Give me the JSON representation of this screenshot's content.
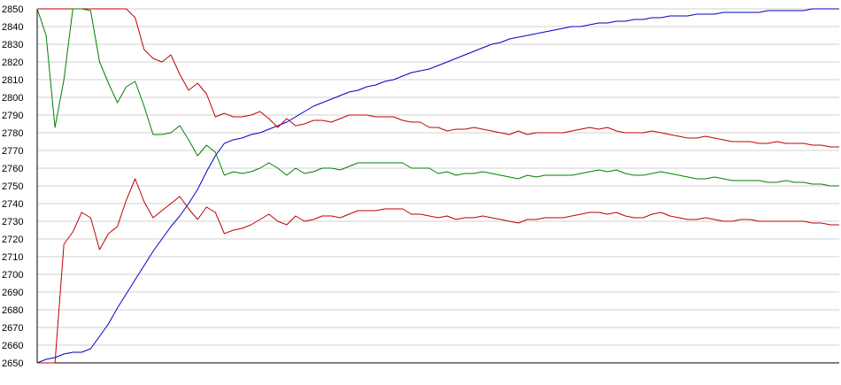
{
  "chart_data": {
    "type": "line",
    "title": "",
    "xlabel": "",
    "ylabel": "",
    "ylim": [
      2650,
      2850
    ],
    "yticks": [
      2650,
      2660,
      2670,
      2680,
      2690,
      2700,
      2710,
      2720,
      2730,
      2740,
      2750,
      2760,
      2770,
      2780,
      2790,
      2800,
      2810,
      2820,
      2830,
      2840,
      2850
    ],
    "ytick_labels": [
      "2650",
      "2660",
      "2670",
      "2680",
      "2690",
      "2700",
      "2710",
      "2720",
      "2730",
      "2740",
      "2750",
      "2760",
      "2770",
      "2780",
      "2790",
      "2800",
      "2810",
      "2820",
      "2830",
      "2840",
      "2850"
    ],
    "grid": "horizontal",
    "legend": "none",
    "colors": {
      "blue": "#0000c0",
      "red": "#c00000",
      "green": "#008000",
      "grid": "#d0d0d0",
      "axis": "#000000"
    },
    "series": [
      {
        "color": "#0000c0",
        "x": [
          0,
          10,
          20,
          30,
          40,
          50,
          60,
          70,
          80,
          90,
          100,
          110,
          120,
          130,
          140,
          150,
          160,
          170,
          180,
          190,
          200,
          210,
          220,
          230,
          240,
          250,
          260,
          270,
          280,
          290,
          300,
          310,
          320,
          330,
          340,
          350,
          360,
          370,
          380,
          390,
          400,
          410,
          420,
          430,
          440,
          450,
          460,
          470,
          480,
          490,
          500,
          510,
          520,
          530,
          540,
          550,
          560,
          570,
          580,
          590,
          600,
          610,
          620,
          630,
          640,
          650,
          660,
          670,
          680,
          690,
          700,
          710,
          720,
          730,
          740,
          750,
          760,
          770,
          780,
          790,
          800,
          810,
          820,
          830,
          840,
          850,
          860,
          870,
          880,
          890,
          900
        ],
        "y": [
          2650,
          2652,
          2653,
          2655,
          2656,
          2656,
          2658,
          2665,
          2672,
          2681,
          2689,
          2697,
          2705,
          2713,
          2720,
          2727,
          2733,
          2740,
          2748,
          2758,
          2767,
          2774,
          2776,
          2777,
          2779,
          2780,
          2782,
          2784,
          2786,
          2789,
          2792,
          2795,
          2797,
          2799,
          2801,
          2803,
          2804,
          2806,
          2807,
          2809,
          2810,
          2812,
          2814,
          2815,
          2816,
          2818,
          2820,
          2822,
          2824,
          2826,
          2828,
          2830,
          2831,
          2833,
          2834,
          2835,
          2836,
          2837,
          2838,
          2839,
          2840,
          2840,
          2841,
          2842,
          2842,
          2843,
          2843,
          2844,
          2844,
          2845,
          2845,
          2846,
          2846,
          2846,
          2847,
          2847,
          2847,
          2848,
          2848,
          2848,
          2848,
          2848,
          2849,
          2849,
          2849,
          2849,
          2849,
          2850,
          2850,
          2850,
          2850
        ]
      },
      {
        "color": "#c00000",
        "x": [
          0,
          10,
          20,
          30,
          40,
          50,
          60,
          70,
          80,
          90,
          100,
          110,
          120,
          130,
          140,
          150,
          160,
          170,
          180,
          190,
          200,
          210,
          220,
          230,
          240,
          250,
          260,
          270,
          280,
          290,
          300,
          310,
          320,
          330,
          340,
          350,
          360,
          370,
          380,
          390,
          400,
          410,
          420,
          430,
          440,
          450,
          460,
          470,
          480,
          490,
          500,
          510,
          520,
          530,
          540,
          550,
          560,
          570,
          580,
          590,
          600,
          610,
          620,
          630,
          640,
          650,
          660,
          670,
          680,
          690,
          700,
          710,
          720,
          730,
          740,
          750,
          760,
          770,
          780,
          790,
          800,
          810,
          820,
          830,
          840,
          850,
          860,
          870,
          880,
          890,
          900
        ],
        "y": [
          2850,
          2850,
          2850,
          2850,
          2850,
          2850,
          2850,
          2850,
          2850,
          2850,
          2850,
          2845,
          2827,
          2822,
          2820,
          2824,
          2813,
          2804,
          2808,
          2802,
          2789,
          2791,
          2789,
          2789,
          2790,
          2792,
          2788,
          2783,
          2788,
          2784,
          2785,
          2787,
          2787,
          2786,
          2788,
          2790,
          2790,
          2790,
          2789,
          2789,
          2789,
          2787,
          2786,
          2786,
          2783,
          2783,
          2781,
          2782,
          2782,
          2783,
          2782,
          2781,
          2780,
          2779,
          2781,
          2779,
          2780,
          2780,
          2780,
          2780,
          2781,
          2782,
          2783,
          2782,
          2783,
          2781,
          2780,
          2780,
          2780,
          2781,
          2780,
          2779,
          2778,
          2777,
          2777,
          2778,
          2777,
          2776,
          2775,
          2775,
          2775,
          2774,
          2774,
          2775,
          2774,
          2774,
          2774,
          2773,
          2773,
          2772,
          2772
        ]
      },
      {
        "color": "#008000",
        "x": [
          0,
          10,
          20,
          30,
          40,
          50,
          60,
          70,
          80,
          90,
          100,
          110,
          120,
          130,
          140,
          150,
          160,
          170,
          180,
          190,
          200,
          210,
          220,
          230,
          240,
          250,
          260,
          270,
          280,
          290,
          300,
          310,
          320,
          330,
          340,
          350,
          360,
          370,
          380,
          390,
          400,
          410,
          420,
          430,
          440,
          450,
          460,
          470,
          480,
          490,
          500,
          510,
          520,
          530,
          540,
          550,
          560,
          570,
          580,
          590,
          600,
          610,
          620,
          630,
          640,
          650,
          660,
          670,
          680,
          690,
          700,
          710,
          720,
          730,
          740,
          750,
          760,
          770,
          780,
          790,
          800,
          810,
          820,
          830,
          840,
          850,
          860,
          870,
          880,
          890,
          900
        ],
        "y": [
          2850,
          2835,
          2783,
          2810,
          2850,
          2850,
          2849,
          2820,
          2808,
          2797,
          2806,
          2809,
          2795,
          2779,
          2779,
          2780,
          2784,
          2776,
          2767,
          2773,
          2769,
          2756,
          2758,
          2757,
          2758,
          2760,
          2763,
          2760,
          2756,
          2760,
          2757,
          2758,
          2760,
          2760,
          2759,
          2761,
          2763,
          2763,
          2763,
          2763,
          2763,
          2763,
          2760,
          2760,
          2760,
          2757,
          2758,
          2756,
          2757,
          2757,
          2758,
          2757,
          2756,
          2755,
          2754,
          2756,
          2755,
          2756,
          2756,
          2756,
          2756,
          2757,
          2758,
          2759,
          2758,
          2759,
          2757,
          2756,
          2756,
          2757,
          2758,
          2757,
          2756,
          2755,
          2754,
          2754,
          2755,
          2754,
          2753,
          2753,
          2753,
          2753,
          2752,
          2752,
          2753,
          2752,
          2752,
          2751,
          2751,
          2750,
          2750
        ]
      },
      {
        "color": "#c00000",
        "x": [
          0,
          10,
          20,
          30,
          40,
          50,
          60,
          70,
          80,
          90,
          100,
          110,
          120,
          130,
          140,
          150,
          160,
          170,
          180,
          190,
          200,
          210,
          220,
          230,
          240,
          250,
          260,
          270,
          280,
          290,
          300,
          310,
          320,
          330,
          340,
          350,
          360,
          370,
          380,
          390,
          400,
          410,
          420,
          430,
          440,
          450,
          460,
          470,
          480,
          490,
          500,
          510,
          520,
          530,
          540,
          550,
          560,
          570,
          580,
          590,
          600,
          610,
          620,
          630,
          640,
          650,
          660,
          670,
          680,
          690,
          700,
          710,
          720,
          730,
          740,
          750,
          760,
          770,
          780,
          790,
          800,
          810,
          820,
          830,
          840,
          850,
          860,
          870,
          880,
          890,
          900
        ],
        "y": [
          2650,
          2650,
          2650,
          2717,
          2724,
          2735,
          2732,
          2714,
          2723,
          2727,
          2742,
          2754,
          2741,
          2732,
          2736,
          2740,
          2744,
          2737,
          2731,
          2738,
          2735,
          2723,
          2725,
          2726,
          2728,
          2731,
          2734,
          2730,
          2728,
          2733,
          2730,
          2731,
          2733,
          2733,
          2732,
          2734,
          2736,
          2736,
          2736,
          2737,
          2737,
          2737,
          2734,
          2734,
          2733,
          2732,
          2733,
          2731,
          2732,
          2732,
          2733,
          2732,
          2731,
          2730,
          2729,
          2731,
          2731,
          2732,
          2732,
          2732,
          2733,
          2734,
          2735,
          2735,
          2734,
          2735,
          2733,
          2732,
          2732,
          2734,
          2735,
          2733,
          2732,
          2731,
          2731,
          2732,
          2731,
          2730,
          2730,
          2731,
          2731,
          2730,
          2730,
          2730,
          2730,
          2730,
          2730,
          2729,
          2729,
          2728,
          2728
        ]
      }
    ]
  }
}
